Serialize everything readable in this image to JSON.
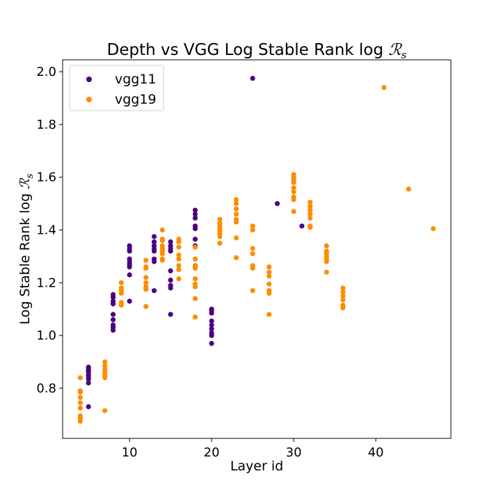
{
  "chart_data": {
    "type": "scatter",
    "title_text": "Depth vs VGG Log Stable Rank log ",
    "title_math": "ℛ",
    "title_sub": "s",
    "xlabel": "Layer id",
    "ylabel_text": "Log Stable Rank log ",
    "ylabel_math": "ℛ",
    "ylabel_sub": "s",
    "xlim": [
      1.85,
      49.15
    ],
    "ylim": [
      0.61,
      2.045
    ],
    "xticks": [
      10,
      20,
      30,
      40
    ],
    "yticks": [
      0.8,
      1.0,
      1.2,
      1.4,
      1.6,
      1.8,
      2.0
    ],
    "ytick_labels": [
      "0.8",
      "1.0",
      "1.2",
      "1.4",
      "1.6",
      "1.8",
      "2.0"
    ],
    "grid": false,
    "legend_position": "top-left",
    "series": [
      {
        "name": "vgg11",
        "color": "#4b0082",
        "points": [
          [
            5,
            0.73
          ],
          [
            5,
            0.82
          ],
          [
            5,
            0.835
          ],
          [
            5,
            0.845
          ],
          [
            5,
            0.85
          ],
          [
            5,
            0.86
          ],
          [
            5,
            0.865
          ],
          [
            5,
            0.87
          ],
          [
            5,
            0.875
          ],
          [
            5,
            0.88
          ],
          [
            8,
            1.02
          ],
          [
            8,
            1.03
          ],
          [
            8,
            1.04
          ],
          [
            8,
            1.06
          ],
          [
            8,
            1.08
          ],
          [
            8,
            1.12
          ],
          [
            8,
            1.13
          ],
          [
            8,
            1.145
          ],
          [
            8,
            1.155
          ],
          [
            10,
            1.13
          ],
          [
            10,
            1.23
          ],
          [
            10,
            1.26
          ],
          [
            10,
            1.27
          ],
          [
            10,
            1.28
          ],
          [
            10,
            1.29
          ],
          [
            10,
            1.32
          ],
          [
            10,
            1.33
          ],
          [
            10,
            1.34
          ],
          [
            13,
            1.17
          ],
          [
            13,
            1.28
          ],
          [
            13,
            1.29
          ],
          [
            13,
            1.32
          ],
          [
            13,
            1.33
          ],
          [
            13,
            1.34
          ],
          [
            13,
            1.355
          ],
          [
            13,
            1.375
          ],
          [
            15,
            1.08
          ],
          [
            15,
            1.18
          ],
          [
            15,
            1.19
          ],
          [
            15,
            1.21
          ],
          [
            15,
            1.245
          ],
          [
            15,
            1.32
          ],
          [
            15,
            1.33
          ],
          [
            15,
            1.34
          ],
          [
            15,
            1.355
          ],
          [
            18,
            1.26
          ],
          [
            18,
            1.34
          ],
          [
            18,
            1.365
          ],
          [
            18,
            1.405
          ],
          [
            18,
            1.415
          ],
          [
            18,
            1.445
          ],
          [
            18,
            1.46
          ],
          [
            18,
            1.475
          ],
          [
            20,
            0.97
          ],
          [
            20,
            1.0
          ],
          [
            20,
            1.01
          ],
          [
            20,
            1.025
          ],
          [
            20,
            1.04
          ],
          [
            20,
            1.055
          ],
          [
            20,
            1.085
          ],
          [
            20,
            1.095
          ],
          [
            20,
            1.1
          ],
          [
            25,
            1.975
          ],
          [
            28,
            1.5
          ],
          [
            31,
            1.415
          ]
        ]
      },
      {
        "name": "vgg19",
        "color": "#ff8c00",
        "points": [
          [
            4,
            0.675
          ],
          [
            4,
            0.685
          ],
          [
            4,
            0.695
          ],
          [
            4,
            0.725
          ],
          [
            4,
            0.745
          ],
          [
            4,
            0.765
          ],
          [
            4,
            0.785
          ],
          [
            4,
            0.79
          ],
          [
            4,
            0.84
          ],
          [
            7,
            0.715
          ],
          [
            7,
            0.84
          ],
          [
            7,
            0.85
          ],
          [
            7,
            0.86
          ],
          [
            7,
            0.87
          ],
          [
            7,
            0.885
          ],
          [
            7,
            0.9
          ],
          [
            9,
            1.115
          ],
          [
            9,
            1.125
          ],
          [
            9,
            1.16
          ],
          [
            9,
            1.17
          ],
          [
            9,
            1.18
          ],
          [
            9,
            1.2
          ],
          [
            12,
            1.11
          ],
          [
            12,
            1.175
          ],
          [
            12,
            1.185
          ],
          [
            12,
            1.2
          ],
          [
            12,
            1.22
          ],
          [
            12,
            1.255
          ],
          [
            12,
            1.26
          ],
          [
            12,
            1.285
          ],
          [
            14,
            1.285
          ],
          [
            14,
            1.29
          ],
          [
            14,
            1.31
          ],
          [
            14,
            1.32
          ],
          [
            14,
            1.33
          ],
          [
            14,
            1.34
          ],
          [
            14,
            1.36
          ],
          [
            14,
            1.365
          ],
          [
            14,
            1.4
          ],
          [
            16,
            1.215
          ],
          [
            16,
            1.25
          ],
          [
            16,
            1.265
          ],
          [
            16,
            1.29
          ],
          [
            16,
            1.305
          ],
          [
            16,
            1.335
          ],
          [
            16,
            1.355
          ],
          [
            16,
            1.365
          ],
          [
            18,
            1.07
          ],
          [
            18,
            1.14
          ],
          [
            18,
            1.185
          ],
          [
            18,
            1.195
          ],
          [
            18,
            1.215
          ],
          [
            18,
            1.255
          ],
          [
            18,
            1.265
          ],
          [
            18,
            1.29
          ],
          [
            18,
            1.335
          ],
          [
            21,
            1.35
          ],
          [
            21,
            1.375
          ],
          [
            21,
            1.385
          ],
          [
            21,
            1.395
          ],
          [
            21,
            1.405
          ],
          [
            21,
            1.415
          ],
          [
            21,
            1.425
          ],
          [
            21,
            1.44
          ],
          [
            23,
            1.295
          ],
          [
            23,
            1.37
          ],
          [
            23,
            1.43
          ],
          [
            23,
            1.44
          ],
          [
            23,
            1.46
          ],
          [
            23,
            1.48
          ],
          [
            23,
            1.5
          ],
          [
            23,
            1.515
          ],
          [
            25,
            1.17
          ],
          [
            25,
            1.255
          ],
          [
            25,
            1.265
          ],
          [
            25,
            1.31
          ],
          [
            25,
            1.33
          ],
          [
            25,
            1.4
          ],
          [
            25,
            1.415
          ],
          [
            27,
            1.08
          ],
          [
            27,
            1.16
          ],
          [
            27,
            1.17
          ],
          [
            27,
            1.195
          ],
          [
            27,
            1.225
          ],
          [
            27,
            1.24
          ],
          [
            27,
            1.26
          ],
          [
            30,
            1.47
          ],
          [
            30,
            1.515
          ],
          [
            30,
            1.525
          ],
          [
            30,
            1.545
          ],
          [
            30,
            1.56
          ],
          [
            30,
            1.58
          ],
          [
            30,
            1.59
          ],
          [
            30,
            1.6
          ],
          [
            30,
            1.61
          ],
          [
            32,
            1.41
          ],
          [
            32,
            1.415
          ],
          [
            32,
            1.445
          ],
          [
            32,
            1.46
          ],
          [
            32,
            1.475
          ],
          [
            32,
            1.49
          ],
          [
            32,
            1.505
          ],
          [
            34,
            1.24
          ],
          [
            34,
            1.28
          ],
          [
            34,
            1.29
          ],
          [
            34,
            1.3
          ],
          [
            34,
            1.31
          ],
          [
            34,
            1.32
          ],
          [
            34,
            1.34
          ],
          [
            36,
            1.105
          ],
          [
            36,
            1.115
          ],
          [
            36,
            1.135
          ],
          [
            36,
            1.15
          ],
          [
            36,
            1.165
          ],
          [
            36,
            1.18
          ],
          [
            41,
            1.94
          ],
          [
            44,
            1.555
          ],
          [
            47,
            1.405
          ]
        ]
      }
    ]
  }
}
